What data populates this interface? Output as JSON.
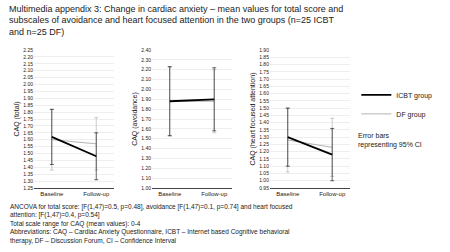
{
  "chart_data": [
    {
      "type": "line",
      "title": "Multimedia appendix 3: Change in cardiac anxiety – mean values for total score and\nsubscales of avoidance and heart focused attention in the two groups (n=25 ICBT\nand n=25 DF)",
      "annotations": [
        "Error bars\nrepresenting 95% CI"
      ],
      "footnotes": [
        "ANCOVA for total score: [F(1,47)=0.5, p=0.48], avoidance [F(1,47)=0.1, p=0.74] and heart focused",
        "attention: [F(1,47)=0.4, p=0.54]",
        "Total scale range for CAQ (mean values): 0-4",
        "Abbreviations: CAQ – Cardiac Anxiety Questionnaire, ICBT – Internet based Cognitive behavioral",
        "therapy, DF – Discussion Forum, CI – Confidence Interval"
      ],
      "legend": "right",
      "categories": [
        "Baseline",
        "Follow-up"
      ],
      "y_label": "CAQ (total)",
      "ylim": [
        1.25,
        2.25
      ],
      "yticks": [
        1.25,
        {
          "value": 1.3,
          "label": "1.30"
        },
        1.35,
        {
          "value": 1.4,
          "label": "1.40"
        },
        1.45,
        {
          "value": 1.5,
          "label": "1.50"
        },
        1.55,
        {
          "value": 1.6,
          "label": "1.60"
        },
        1.65,
        {
          "value": 1.7,
          "label": "1.70"
        },
        1.75,
        {
          "value": 1.8,
          "label": "1.80"
        },
        1.85,
        {
          "value": 1.9,
          "label": "1.90"
        },
        1.95,
        {
          "value": 2.0,
          "label": "2.00"
        },
        2.05,
        {
          "value": 2.1,
          "label": "2.10"
        },
        2.15,
        {
          "value": 2.2,
          "label": "2.20"
        },
        2.25
      ],
      "grid": true,
      "series": [
        {
          "name": "ICBT group",
          "color": "#000000",
          "values": [
            1.62,
            1.48
          ],
          "error": [
            0.2,
            0.17
          ]
        },
        {
          "name": "DF group",
          "color": "#aaaaaa",
          "values": [
            1.6,
            1.57
          ],
          "error": [
            0.22,
            0.19
          ]
        }
      ]
    },
    {
      "type": "line",
      "categories": [
        "Baseline",
        "Follow-up"
      ],
      "y_label": "CAQ (avoidance)",
      "ylim": [
        1.0,
        2.4
      ],
      "yticks": [
        {
          "value": 1.0,
          "label": "1.00"
        },
        {
          "value": 1.1,
          "label": "1.10"
        },
        {
          "value": 1.2,
          "label": "1.20"
        },
        {
          "value": 1.3,
          "label": "1.30"
        },
        {
          "value": 1.4,
          "label": "1.40"
        },
        {
          "value": 1.5,
          "label": "1.50"
        },
        {
          "value": 1.6,
          "label": "1.60"
        },
        {
          "value": 1.7,
          "label": "1.70"
        },
        {
          "value": 1.8,
          "label": "1.80"
        },
        {
          "value": 1.9,
          "label": "1.90"
        },
        {
          "value": 2.0,
          "label": "2.00"
        },
        {
          "value": 2.1,
          "label": "2.10"
        },
        {
          "value": 2.2,
          "label": "2.20"
        },
        {
          "value": 2.3,
          "label": "2.30"
        },
        {
          "value": 2.4,
          "label": "2.40"
        }
      ],
      "grid": true,
      "series": [
        {
          "name": "ICBT group",
          "color": "#000000",
          "values": [
            1.88,
            1.9
          ],
          "error": [
            0.35,
            0.32
          ]
        },
        {
          "name": "DF group",
          "color": "#aaaaaa",
          "values": [
            1.88,
            1.88
          ],
          "error": [
            0.35,
            0.32
          ]
        }
      ]
    },
    {
      "type": "line",
      "categories": [
        "Baseline",
        "Follow-up"
      ],
      "y_label": "CAQ (heart focused attention)",
      "ylim": [
        0.95,
        1.9
      ],
      "yticks": [
        0.95,
        {
          "value": 1.0,
          "label": "1.00"
        },
        1.05,
        {
          "value": 1.1,
          "label": "1.10"
        },
        1.15,
        {
          "value": 1.2,
          "label": "1.20"
        },
        1.25,
        {
          "value": 1.3,
          "label": "1.30"
        },
        1.35,
        {
          "value": 1.4,
          "label": "1.40"
        },
        1.45,
        {
          "value": 1.5,
          "label": "1.50"
        },
        1.55,
        {
          "value": 1.6,
          "label": "1.60"
        },
        1.65,
        {
          "value": 1.7,
          "label": "1.70"
        },
        1.75,
        {
          "value": 1.8,
          "label": "1.80"
        },
        1.85,
        {
          "value": 1.9,
          "label": "1.90"
        }
      ],
      "grid": true,
      "series": [
        {
          "name": "ICBT group",
          "color": "#000000",
          "values": [
            1.3,
            1.18
          ],
          "error": [
            0.2,
            0.18
          ]
        },
        {
          "name": "DF group",
          "color": "#aaaaaa",
          "values": [
            1.28,
            1.23
          ],
          "error": [
            0.22,
            0.2
          ]
        }
      ]
    }
  ]
}
